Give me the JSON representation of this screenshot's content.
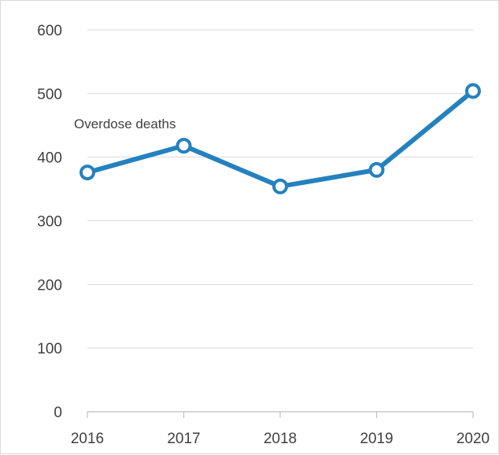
{
  "chart_data": {
    "type": "line",
    "title": "",
    "xlabel": "",
    "ylabel": "",
    "categories": [
      "2016",
      "2017",
      "2018",
      "2019",
      "2020"
    ],
    "series": [
      {
        "name": "Overdose deaths",
        "values": [
          376,
          418,
          354,
          380,
          504
        ]
      }
    ],
    "ylim": [
      0,
      600
    ],
    "yticks": [
      0,
      100,
      200,
      300,
      400,
      500,
      600
    ],
    "grid": true,
    "legend": "none",
    "colors": {
      "line": "#2481BF",
      "marker_fill": "#ffffff",
      "grid": "#d9d9d9",
      "axis": "#bfbfbf",
      "text": "#404040"
    }
  }
}
